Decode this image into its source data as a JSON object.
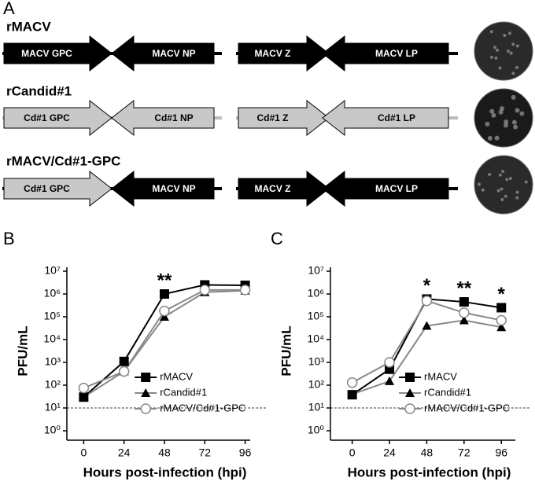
{
  "panel_a": {
    "label": "A",
    "rows": [
      {
        "name": "rMACV",
        "genes": [
          "MACV GPC",
          "MACV NP",
          "MACV Z",
          "MACV LP"
        ]
      },
      {
        "name": "rCandid#1",
        "genes": [
          "Cd#1 GPC",
          "Cd#1 NP",
          "Cd#1 Z",
          "Cd#1 LP"
        ]
      },
      {
        "name": "rMACV/Cd#1-GPC",
        "genes": [
          "Cd#1 GPC",
          "MACV NP",
          "MACV Z",
          "MACV LP"
        ]
      }
    ]
  },
  "chart_data": [
    {
      "type": "line",
      "panel_label": "B",
      "ylabel": "PFU/mL",
      "xlabel": "Hours post-infection (hpi)",
      "x": [
        0,
        24,
        48,
        72,
        96
      ],
      "xlim": [
        -10,
        99
      ],
      "xticks": [
        0,
        24,
        48,
        72,
        96
      ],
      "ylim": [
        1,
        10000000
      ],
      "log_y": true,
      "yticks": [
        {
          "value": 1,
          "label": "10⁰"
        },
        {
          "value": 10,
          "label": "10¹"
        },
        {
          "value": 100,
          "label": "10²"
        },
        {
          "value": 1000,
          "label": "10³"
        },
        {
          "value": 10000,
          "label": "10⁴"
        },
        {
          "value": 100000,
          "label": "10⁵"
        },
        {
          "value": 1000000,
          "label": "10⁶"
        },
        {
          "value": 10000000,
          "label": "10⁷"
        }
      ],
      "hline": 10,
      "annotations": [
        {
          "text": "**",
          "x": 48
        }
      ],
      "series": [
        {
          "name": "rMACV",
          "color": "#000000",
          "marker": "square",
          "values": [
            30,
            1100,
            1000000,
            2500000,
            2400000
          ]
        },
        {
          "name": "rCandid#1",
          "color": "#888888",
          "marker": "triangle",
          "values": [
            30,
            400,
            100000,
            1200000,
            1400000
          ]
        },
        {
          "name": "rMACV/Cd#1-GPC",
          "color": "#888888",
          "marker": "circle",
          "values": [
            75,
            400,
            180000,
            1500000,
            1500000
          ]
        }
      ]
    },
    {
      "type": "line",
      "panel_label": "C",
      "ylabel": "PFU/mL",
      "xlabel": "Hours post-infection (hpi)",
      "x": [
        0,
        24,
        48,
        72,
        96
      ],
      "xlim": [
        -14,
        105
      ],
      "xticks": [
        0,
        24,
        48,
        72,
        96
      ],
      "ylim": [
        1,
        10000000
      ],
      "log_y": true,
      "yticks": [
        {
          "value": 1,
          "label": "10⁰"
        },
        {
          "value": 10,
          "label": "10¹"
        },
        {
          "value": 100,
          "label": "10²"
        },
        {
          "value": 1000,
          "label": "10³"
        },
        {
          "value": 10000,
          "label": "10⁴"
        },
        {
          "value": 100000,
          "label": "10⁵"
        },
        {
          "value": 1000000,
          "label": "10⁶"
        },
        {
          "value": 10000000,
          "label": "10⁷"
        }
      ],
      "hline": 10,
      "annotations": [
        {
          "text": "*",
          "x": 48
        },
        {
          "text": "**",
          "x": 72
        },
        {
          "text": "*",
          "x": 96
        }
      ],
      "series": [
        {
          "name": "rMACV",
          "color": "#000000",
          "marker": "square",
          "values": [
            38,
            500,
            600000,
            450000,
            250000
          ]
        },
        {
          "name": "rCandid#1",
          "color": "#888888",
          "marker": "triangle",
          "values": [
            40,
            150,
            40000,
            70000,
            35000
          ]
        },
        {
          "name": "rMACV/Cd#1-GPC",
          "color": "#888888",
          "marker": "circle",
          "values": [
            130,
            1000,
            500000,
            150000,
            70000
          ]
        }
      ]
    }
  ]
}
